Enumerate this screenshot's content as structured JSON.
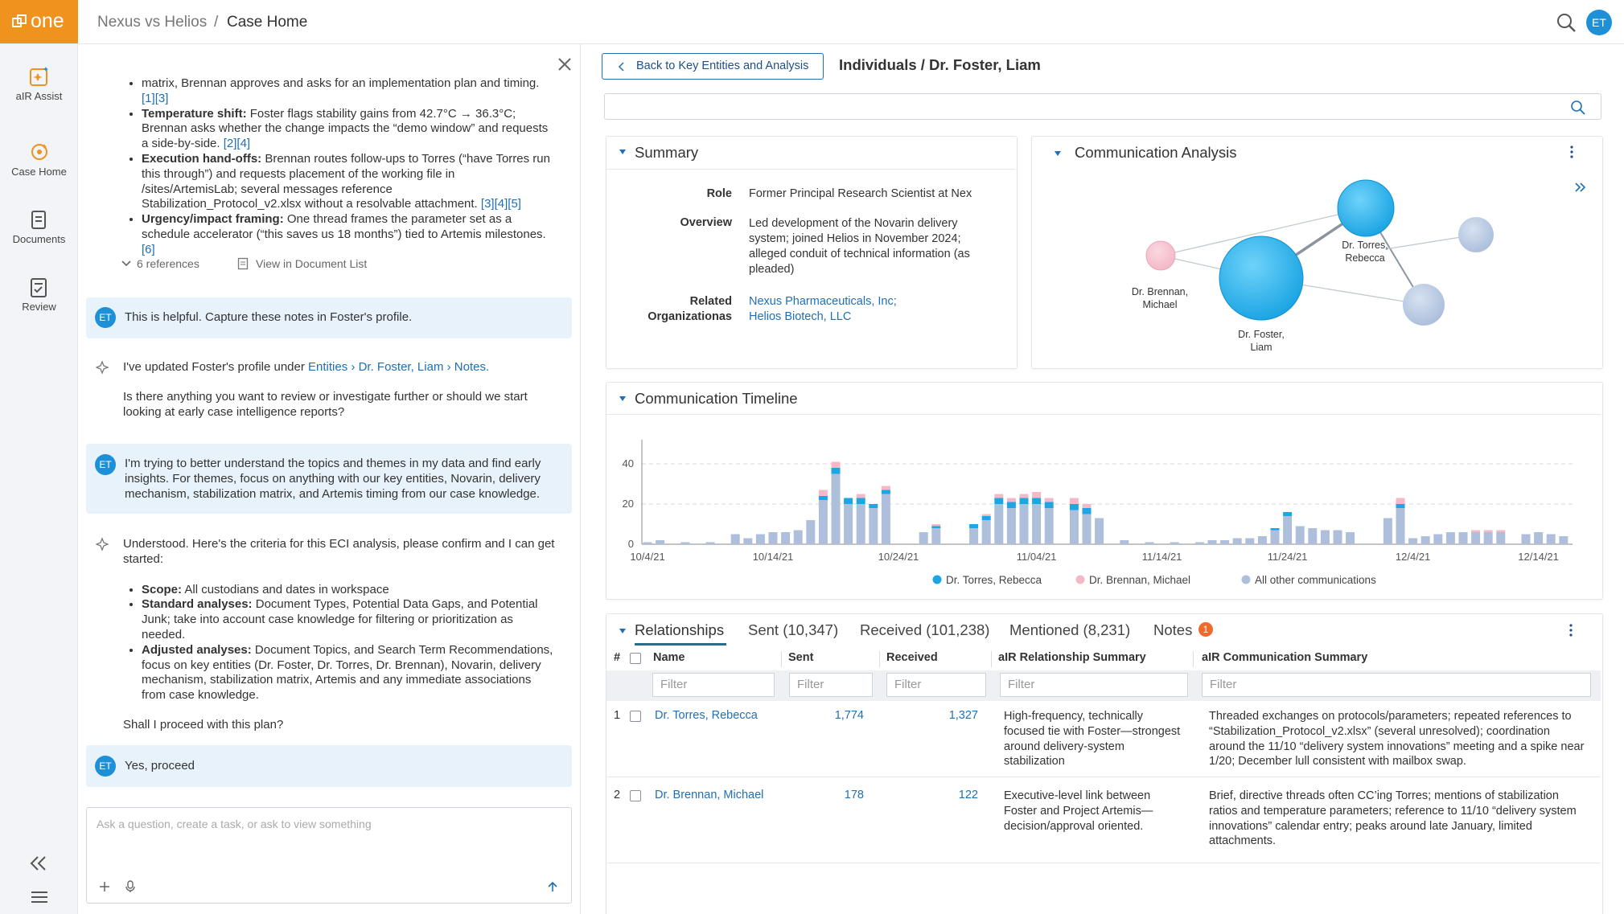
{
  "header": {
    "logo": "one",
    "breadcrumb_parent": "Nexus vs Helios",
    "separator": "/",
    "breadcrumb_current": "Case Home",
    "avatar": "ET"
  },
  "sidebar": {
    "items": [
      "aIR Assist",
      "Case Home",
      "Documents",
      "Review"
    ]
  },
  "chat": {
    "messages": [
      {
        "role": "assistant",
        "bullets": [
          {
            "text": "matrix, Brennan approves and asks for an implementation plan and timing.",
            "refs": [
              "[1]",
              "[3]"
            ]
          },
          {
            "label": "Temperature shift:",
            "text": "Foster flags stability gains from 42.7°C → 36.3°C; Brennan asks whether the change impacts the “demo window” and requests a side-by-side.",
            "refs": [
              "[2]",
              "[4]"
            ]
          },
          {
            "label": "Execution hand-offs:",
            "text": "Brennan routes follow-ups to Torres (“have Torres run this through”) and requests placement of the working file in /sites/ArtemisLab; several messages reference Stabilization_Protocol_v2.xlsx without a resolvable attachment.",
            "refs": [
              "[3]",
              "[4]",
              "[5]"
            ]
          },
          {
            "label": "Urgency/impact framing:",
            "text": "One thread frames the parameter set as a schedule accelerator (“this saves us 18 months”) tied to Artemis milestones.",
            "refs": [
              "[6]"
            ]
          }
        ],
        "references": "6 references",
        "view_link": "View in Document List"
      },
      {
        "role": "user",
        "text": "This is helpful. Capture these notes in Foster's profile."
      },
      {
        "role": "assistant",
        "text": "I've updated Foster's profile under",
        "path": [
          "Entities",
          "Dr. Foster, Liam",
          "Notes."
        ],
        "path_separator": "›",
        "followup": "Is there anything you want to review or investigate further or should we start looking at early case intelligence reports?"
      },
      {
        "role": "user",
        "text": "I'm trying to better understand the topics and themes in my data and find early insights. For themes, focus on anything with our key entities, Novarin, delivery mechanism, stabilization matrix, and Artemis timing from our case knowledge."
      },
      {
        "role": "assistant",
        "text": "Understood. Here's the criteria for this ECI analysis, please confirm and I can get started:",
        "bullets": [
          {
            "label": "Scope:",
            "text": "All custodians and dates in workspace"
          },
          {
            "label": "Standard analyses:",
            "text": "Document Types, Potential Data Gaps, and Potential Junk; take into account case knowledge for filtering or prioritization as needed."
          },
          {
            "label": "Adjusted analyses:",
            "text": "Document Topics, and Search Term Recommendations, focus on key entities (Dr. Foster, Dr. Torres, Dr. Brennan), Novarin, delivery mechanism, stabilization matrix, Artemis and any immediate associations from case knowledge."
          }
        ],
        "closing": "Shall I proceed with this plan?"
      },
      {
        "role": "user",
        "text": "Yes, proceed"
      }
    ],
    "input_placeholder": "Ask a question, create a task, or ask to view something"
  },
  "entity": {
    "back": "Back to Key Entities and Analysis",
    "title": "Individuals / Dr. Foster, Liam",
    "summary": {
      "title": "Summary",
      "rows": [
        {
          "label": "Role",
          "value": "Former Principal Research Scientist at Nex"
        },
        {
          "label": "Overview",
          "value": "Led development of the Novarin delivery system; joined Helios in November 2024; alleged conduit of technical information (as pleaded)"
        },
        {
          "label": "Related Organizationas",
          "links": [
            "Nexus Pharmaceuticals, Inc;",
            "Helios Biotech, LLC"
          ]
        }
      ]
    },
    "communication_analysis": {
      "title": "Communication Analysis",
      "nodes": [
        "Dr. Torres, Rebecca",
        "Dr. Brennan, Michael",
        "Dr. Foster, Liam"
      ]
    },
    "relationships": {
      "tabs": [
        "Relationships",
        "Sent (10,347)",
        "Received (101,238)",
        "Mentioned (8,231)",
        "Notes"
      ],
      "notes_badge": "1",
      "columns": [
        "#",
        "Name",
        "Sent",
        "Received",
        "aIR Relationship Summary",
        "aIR Communication Summary"
      ],
      "filter_placeholder": "Filter",
      "rows": [
        [
          "1",
          "Dr. Torres, Rebecca",
          "1,774",
          "1,327",
          "High-frequency, technically focused tie with Foster—strongest around delivery-system stabilization",
          "Threaded exchanges on protocols/parameters; repeated references to “Stabilization_Protocol_v2.xlsx” (several unresolved); coordination around the 11/10 “delivery system innovations” meeting and a spike near 1/20; December lull consistent with mailbox swap."
        ],
        [
          "2",
          "Dr. Brennan, Michael",
          "178",
          "122",
          "Executive-level link between Foster and Project Artemis—decision/approval oriented.",
          "Brief, directive threads often CC’ing Torres; mentions of stabilization ratios and temperature parameters; reference to 11/10 “delivery system innovations” calendar entry; peaks around late January, limited attachments."
        ]
      ]
    }
  },
  "chart_data": {
    "type": "bar",
    "stacked": true,
    "title": "Communication Timeline",
    "categories": [
      "10/4/21",
      null,
      null,
      null,
      null,
      null,
      null,
      null,
      null,
      null,
      "10/14/21",
      null,
      null,
      null,
      null,
      null,
      null,
      null,
      null,
      null,
      "10/24/21",
      null,
      null,
      null,
      null,
      null,
      null,
      null,
      null,
      null,
      null,
      "11/04/21",
      null,
      null,
      null,
      null,
      null,
      null,
      null,
      null,
      null,
      "11/14/21",
      null,
      null,
      null,
      null,
      null,
      null,
      null,
      null,
      null,
      "11/24/21",
      null,
      null,
      null,
      null,
      null,
      null,
      null,
      null,
      null,
      "12/4/21",
      null,
      null,
      null,
      null,
      null,
      null,
      null,
      null,
      null,
      "12/14/21",
      null,
      null
    ],
    "series": [
      {
        "name": "Dr. Torres, Rebecca",
        "color": "#1ea5e3",
        "values": [
          0,
          0,
          0,
          0,
          0,
          0,
          0,
          0,
          0,
          0,
          0,
          0,
          0,
          0,
          2,
          3,
          3,
          3,
          2,
          2,
          0,
          0,
          0,
          1,
          0,
          0,
          2,
          2,
          3,
          3,
          3,
          3,
          3,
          0,
          3,
          3,
          0,
          0,
          0,
          0,
          0,
          0,
          0,
          0,
          0,
          0,
          0,
          0,
          0,
          0,
          1,
          2,
          0,
          0,
          0,
          0,
          0,
          0,
          0,
          0,
          2,
          0,
          0,
          0,
          0,
          0,
          0,
          0,
          0,
          0,
          0,
          0,
          0,
          0
        ]
      },
      {
        "name": "Dr. Brennan, Michael",
        "color": "#f4b9c6",
        "values": [
          0,
          0,
          0,
          0,
          0,
          0,
          0,
          0,
          0,
          0,
          0,
          0,
          0,
          0,
          3,
          3,
          0,
          2,
          0,
          2,
          0,
          0,
          0,
          1,
          0,
          0,
          0,
          1,
          2,
          2,
          2,
          3,
          2,
          0,
          3,
          2,
          0,
          0,
          0,
          0,
          0,
          0,
          0,
          0,
          0,
          0,
          0,
          0,
          0,
          0,
          0,
          0,
          0,
          0,
          0,
          0,
          0,
          0,
          0,
          0,
          3,
          0,
          0,
          0,
          0,
          0,
          1,
          1,
          1,
          0,
          0,
          0,
          0,
          0
        ]
      },
      {
        "name": "All other communications",
        "color": "#adbfdb",
        "values": [
          1,
          2,
          0,
          1,
          0,
          1,
          0,
          5,
          3,
          5,
          6,
          6,
          7,
          12,
          22,
          35,
          20,
          20,
          18,
          25,
          0,
          0,
          6,
          8,
          0,
          0,
          8,
          12,
          20,
          18,
          20,
          20,
          18,
          0,
          17,
          15,
          13,
          0,
          2,
          0,
          1,
          0,
          1,
          0,
          1,
          2,
          2,
          3,
          3,
          4,
          7,
          14,
          9,
          8,
          7,
          7,
          6,
          0,
          0,
          13,
          18,
          3,
          4,
          5,
          6,
          6,
          6,
          6,
          6,
          0,
          5,
          6,
          5,
          4
        ]
      }
    ],
    "ylim": [
      0,
      52
    ],
    "yticks": [
      0,
      20,
      40
    ],
    "grid": true
  }
}
